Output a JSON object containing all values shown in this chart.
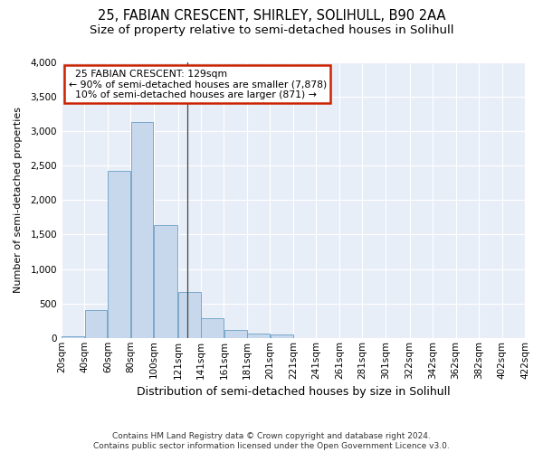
{
  "title1": "25, FABIAN CRESCENT, SHIRLEY, SOLIHULL, B90 2AA",
  "title2": "Size of property relative to semi-detached houses in Solihull",
  "xlabel": "Distribution of semi-detached houses by size in Solihull",
  "ylabel": "Number of semi-detached properties",
  "footer1": "Contains HM Land Registry data © Crown copyright and database right 2024.",
  "footer2": "Contains public sector information licensed under the Open Government Licence v3.0.",
  "annotation_line1": "25 FABIAN CRESCENT: 129sqm",
  "annotation_line2": "← 90% of semi-detached houses are smaller (7,878)",
  "annotation_line3": "10% of semi-detached houses are larger (871) →",
  "property_size": 129,
  "bar_color": "#c8d8ec",
  "bar_edge_color": "#6a9ec5",
  "annotation_box_color": "#ffffff",
  "annotation_box_edge_color": "#cc2200",
  "bin_edges": [
    20,
    40,
    60,
    80,
    100,
    121,
    141,
    161,
    181,
    201,
    221,
    241,
    261,
    281,
    301,
    322,
    342,
    362,
    382,
    402,
    422
  ],
  "bin_labels": [
    "20sqm",
    "40sqm",
    "60sqm",
    "80sqm",
    "100sqm",
    "121sqm",
    "141sqm",
    "161sqm",
    "181sqm",
    "201sqm",
    "221sqm",
    "241sqm",
    "261sqm",
    "281sqm",
    "301sqm",
    "322sqm",
    "342sqm",
    "362sqm",
    "382sqm",
    "402sqm",
    "422sqm"
  ],
  "bar_heights": [
    28,
    400,
    2430,
    3140,
    1640,
    670,
    285,
    115,
    65,
    55,
    0,
    0,
    0,
    0,
    0,
    0,
    0,
    0,
    0,
    0
  ],
  "ylim": [
    0,
    4000
  ],
  "yticks": [
    0,
    500,
    1000,
    1500,
    2000,
    2500,
    3000,
    3500,
    4000
  ],
  "fig_bg_color": "#ffffff",
  "plot_bg_color": "#e8eef8",
  "grid_color": "#ffffff",
  "title1_fontsize": 10.5,
  "title2_fontsize": 9.5,
  "xlabel_fontsize": 9,
  "ylabel_fontsize": 8,
  "tick_fontsize": 7.5,
  "footer_fontsize": 6.5
}
